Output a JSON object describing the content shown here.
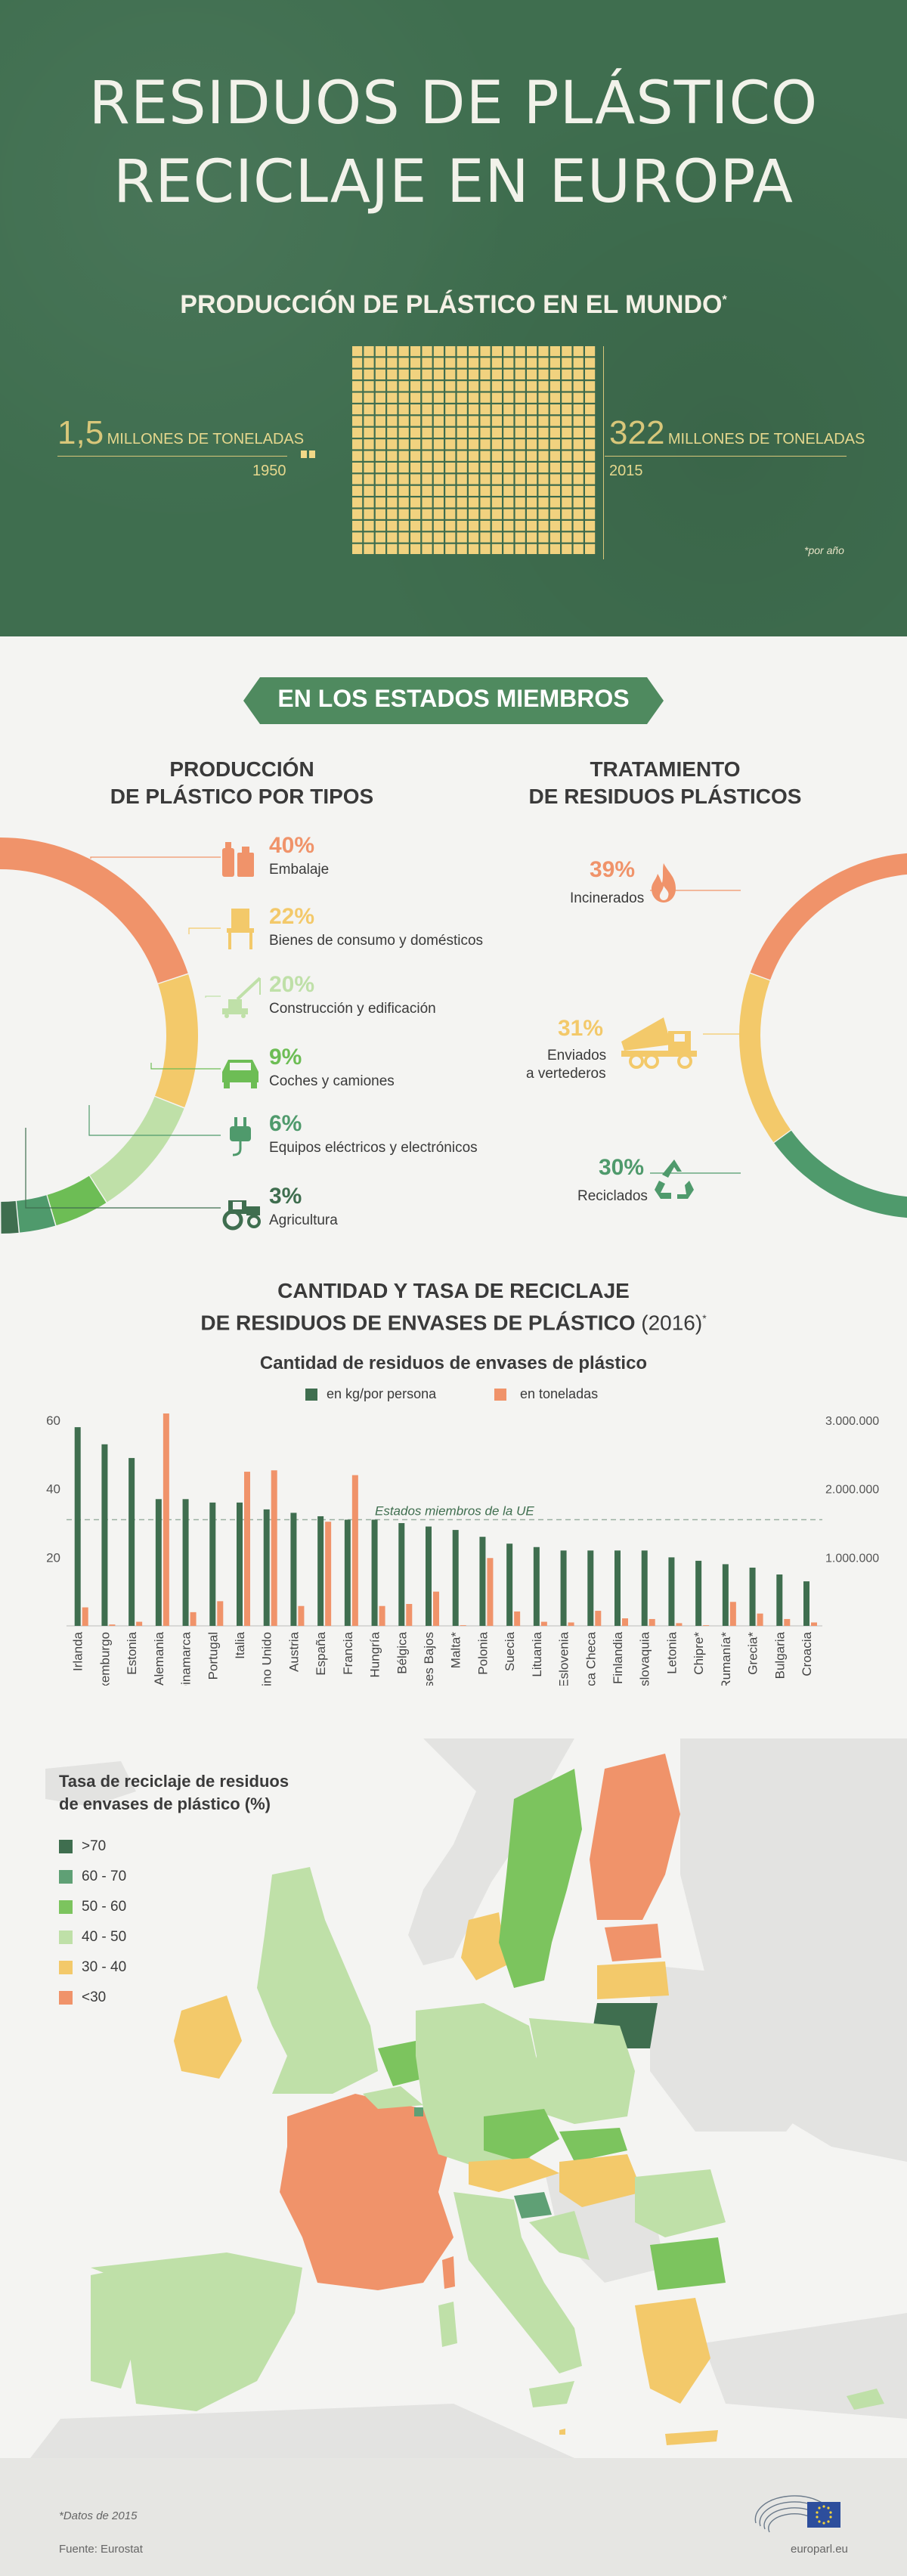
{
  "header": {
    "title_line1": "RESIDUOS DE PLÁSTICO",
    "title_line2": "RECICLAJE EN EUROPA",
    "world_title": "PRODUCCIÓN DE PLÁSTICO EN EL MUNDO",
    "world_title_mark": "*",
    "left_value": "1,5",
    "left_unit": "MILLONES DE TONELADAS",
    "left_year": "1950",
    "right_value": "322",
    "right_unit": "MILLONES DE TONELADAS",
    "right_year": "2015",
    "per_year_note": "*por año"
  },
  "section2": {
    "banner": "EN LOS ESTADOS MIEMBROS",
    "types_title_1": "PRODUCCIÓN",
    "types_title_2": "DE PLÁSTICO POR TIPOS",
    "treat_title_1": "TRATAMIENTO",
    "treat_title_2": "DE RESIDUOS PLÁSTICOS"
  },
  "types": [
    {
      "pct": "40%",
      "label": "Embalaje",
      "color": "#f0936a",
      "icon": "packaging-icon"
    },
    {
      "pct": "22%",
      "label": "Bienes de consumo y domésticos",
      "color": "#f3c96a",
      "icon": "chair-icon"
    },
    {
      "pct": "20%",
      "label": "Construcción y edificación",
      "color": "#bfe0a8",
      "icon": "crane-icon"
    },
    {
      "pct": "9%",
      "label": "Coches y camiones",
      "color": "#6dbd55",
      "icon": "car-icon"
    },
    {
      "pct": "6%",
      "label": "Equipos eléctricos y electrónicos",
      "color": "#4f9a6c",
      "icon": "plug-icon"
    },
    {
      "pct": "3%",
      "label": "Agricultura",
      "color": "#3f6e4f",
      "icon": "tractor-icon"
    }
  ],
  "treatment": [
    {
      "pct": "39%",
      "label": "Incinerados",
      "color": "#f0936a",
      "icon": "flame-icon"
    },
    {
      "pct": "31%",
      "label_1": "Enviados",
      "label_2": "a vertederos",
      "color": "#f3c96a",
      "icon": "dump-truck-icon"
    },
    {
      "pct": "30%",
      "label": "Reciclados",
      "color": "#4f9a6c",
      "icon": "recycle-icon"
    }
  ],
  "bar_section": {
    "title_1": "CANTIDAD Y TASA DE RECICLAJE",
    "title_2": "DE RESIDUOS DE ENVASES DE PLÁSTICO",
    "title_year": "(2016)",
    "title_mark": "*",
    "chart_title": "Cantidad de residuos de envases de plástico",
    "eu_label": "Estados miembros de la UE"
  },
  "map_section": {
    "legend_title_1": "Tasa de reciclaje de residuos",
    "legend_title_2": "de envases de plástico (%)",
    "legend": [
      {
        "label": ">70",
        "color": "#3f6e4f"
      },
      {
        "label": "60 - 70",
        "color": "#5fa075"
      },
      {
        "label": "50 - 60",
        "color": "#7cc45e"
      },
      {
        "label": "40 - 50",
        "color": "#bfe0a8"
      },
      {
        "label": "30 - 40",
        "color": "#f3c96a"
      },
      {
        "label": "<30",
        "color": "#f0936a"
      }
    ]
  },
  "footer": {
    "note": "*Datos de 2015",
    "source": "Fuente: Eurostat",
    "site": "europarl.eu"
  },
  "chart_data": [
    {
      "type": "pie",
      "title": "PRODUCCIÓN DE PLÁSTICO POR TIPOS",
      "categories": [
        "Embalaje",
        "Bienes de consumo y domésticos",
        "Construcción y edificación",
        "Coches y camiones",
        "Equipos eléctricos y electrónicos",
        "Agricultura"
      ],
      "values": [
        40,
        22,
        20,
        9,
        6,
        3
      ]
    },
    {
      "type": "pie",
      "title": "TRATAMIENTO DE RESIDUOS PLÁSTICOS",
      "categories": [
        "Incinerados",
        "Enviados a vertederos",
        "Reciclados"
      ],
      "values": [
        39,
        31,
        30
      ]
    },
    {
      "type": "bar",
      "title": "Cantidad de residuos de envases de plástico",
      "categories": [
        "Irlanda",
        "Luxemburgo",
        "Estonia",
        "Alemania",
        "Dinamarca",
        "Portugal",
        "Italia",
        "Reino Unido",
        "Austria",
        "España",
        "Francia",
        "Hungría",
        "Bélgica",
        "Países Bajos",
        "Malta*",
        "Polonia",
        "Suecia",
        "Lituania",
        "Eslovenia",
        "República Checa",
        "Finlandia",
        "Eslovaquia",
        "Letonia",
        "Chipre*",
        "Rumanía*",
        "Grecia*",
        "Bulgaria",
        "Croacia"
      ],
      "series": [
        {
          "name": "en kg/por persona",
          "color": "#3f6e4f",
          "axis": "left",
          "values": [
            58,
            53,
            49,
            37,
            37,
            36,
            36,
            34,
            33,
            32,
            31,
            31,
            30,
            29,
            28,
            26,
            24,
            23,
            22,
            22,
            22,
            22,
            20,
            19,
            18,
            17,
            15,
            13
          ]
        },
        {
          "name": "en toneladas",
          "color": "#f0936a",
          "axis": "right",
          "values": [
            270000,
            20000,
            60000,
            3100000,
            200000,
            360000,
            2250000,
            2270000,
            290000,
            1520000,
            2200000,
            290000,
            320000,
            500000,
            10000,
            990000,
            210000,
            60000,
            50000,
            220000,
            110000,
            100000,
            40000,
            10000,
            350000,
            180000,
            100000,
            50000
          ]
        }
      ],
      "reference_line": {
        "label": "Estados miembros de la UE",
        "value": 31,
        "axis": "left"
      },
      "y_ticks_left": [
        "20",
        "40",
        "60"
      ],
      "y_ticks_right": [
        "1.000.000",
        "2.000.000",
        "3.000.000"
      ],
      "ylim_left": [
        0,
        62
      ],
      "ylim_right": [
        0,
        3100000
      ],
      "legend_position": "top"
    }
  ]
}
